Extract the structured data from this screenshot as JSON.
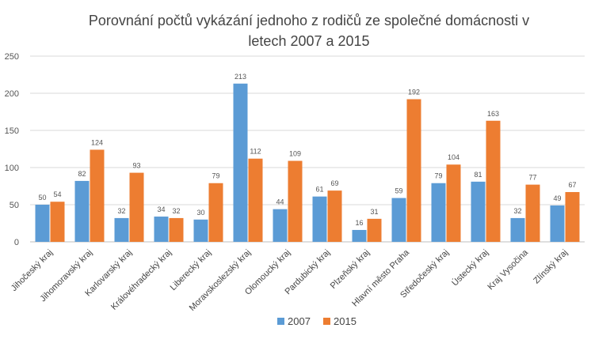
{
  "chart_data": {
    "type": "bar",
    "title": "Porovnání počtů vykázání jednoho z rodičů ze společné domácnosti v letech 2007 a 2015",
    "title_lines": [
      "Porovnání počtů vykázání jednoho z rodičů ze společné domácnosti v",
      "letech 2007 a 2015"
    ],
    "xlabel": "",
    "ylabel": "",
    "ylim": [
      0,
      250
    ],
    "yticks": [
      0,
      50,
      100,
      150,
      200,
      250
    ],
    "grid": true,
    "legend_position": "bottom",
    "categories": [
      "Jihočeský kraj",
      "Jihomoravský kraj",
      "Karlovarský kraj",
      "Královéhradecký kraj",
      "Liberecký kraj",
      "Moravskoslezský kraj",
      "Olomoucký kraj",
      "Pardubický kraj",
      "Plzeňský kraj",
      "Hlavní město Praha",
      "Středočeský kraj",
      "Ústecký kraj",
      "Kraj Vysočina",
      "Zlínský kraj"
    ],
    "series": [
      {
        "name": "2007",
        "color": "#5b9bd5",
        "values": [
          50,
          82,
          32,
          34,
          30,
          213,
          44,
          61,
          16,
          59,
          79,
          81,
          32,
          49
        ]
      },
      {
        "name": "2015",
        "color": "#ed7d31",
        "values": [
          54,
          124,
          93,
          32,
          79,
          112,
          109,
          69,
          31,
          192,
          104,
          163,
          77,
          67
        ]
      }
    ]
  }
}
